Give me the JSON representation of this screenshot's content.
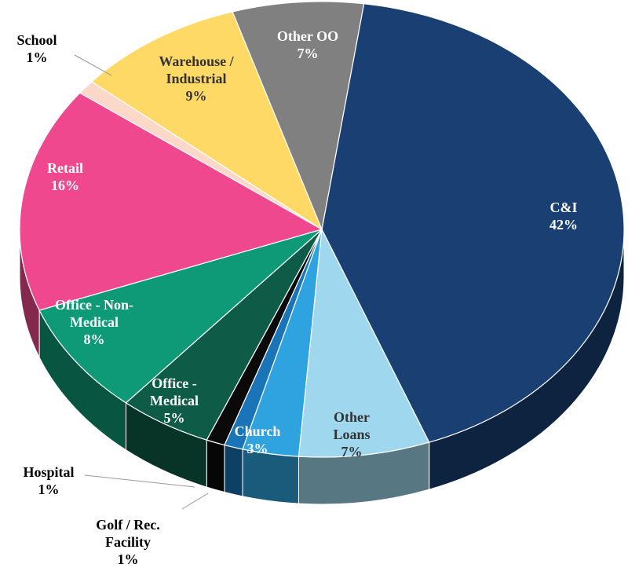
{
  "chart_data": {
    "type": "pie",
    "categories": [
      "C&I",
      "Other Loans",
      "Church",
      "Golf / Rec. Facility",
      "Hospital",
      "Office - Medical",
      "Office - Non-Medical",
      "Retail",
      "School",
      "Warehouse / Industrial",
      "Other OO"
    ],
    "values": [
      42,
      7,
      3,
      1,
      1,
      5,
      8,
      16,
      1,
      9,
      7
    ],
    "value_labels": [
      "42%",
      "7%",
      "3%",
      "1%",
      "1%",
      "5%",
      "8%",
      "16%",
      "1%",
      "9%",
      "7%"
    ],
    "colors": [
      "#1a3f72",
      "#9fd8ee",
      "#2fa3e0",
      "#1a75b8",
      "#0a0a0a",
      "#0e5c47",
      "#0f9a77",
      "#f0488e",
      "#fcd8c8",
      "#ffd966",
      "#808080"
    ],
    "legend": false
  }
}
